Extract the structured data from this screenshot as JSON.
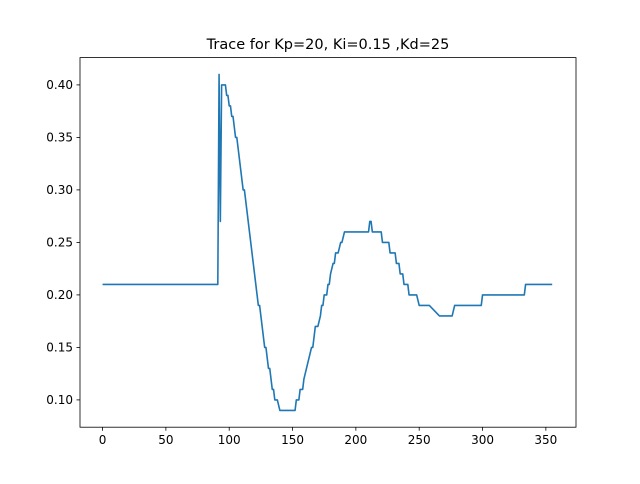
{
  "chart_data": {
    "type": "line",
    "title": "Trace for Kp=20, Ki=0.15 ,Kd=25",
    "xlabel": "",
    "ylabel": "",
    "xlim": [
      -17.8,
      373.8
    ],
    "ylim": [
      0.074,
      0.426
    ],
    "xticks": [
      0,
      50,
      100,
      150,
      200,
      250,
      300,
      350
    ],
    "xtick_labels": [
      "0",
      "50",
      "100",
      "150",
      "200",
      "250",
      "300",
      "350"
    ],
    "yticks": [
      0.1,
      0.15,
      0.2,
      0.25,
      0.3,
      0.35,
      0.4
    ],
    "ytick_labels": [
      "0.10",
      "0.15",
      "0.20",
      "0.25",
      "0.30",
      "0.35",
      "0.40"
    ],
    "grid": false,
    "series": [
      {
        "color": "#1f77b4",
        "x": [
          0,
          91,
          92,
          93,
          94,
          95,
          97,
          98,
          99,
          100,
          101,
          102,
          103,
          104,
          105,
          106,
          107,
          108,
          109,
          110,
          111,
          112,
          113,
          114,
          115,
          116,
          117,
          118,
          119,
          120,
          121,
          122,
          123,
          124,
          125,
          126,
          127,
          128,
          129,
          130,
          131,
          132,
          133,
          134,
          135,
          136,
          138,
          140,
          141,
          143,
          147,
          149,
          152,
          153,
          154,
          155,
          156,
          157,
          158,
          159,
          161,
          163,
          165,
          166,
          167,
          168,
          170,
          172,
          173,
          174,
          175,
          177,
          178,
          179,
          180,
          182,
          183,
          184,
          186,
          188,
          189,
          191,
          192,
          194,
          196,
          200,
          201,
          203,
          205,
          208,
          210,
          211,
          212,
          213,
          220,
          221,
          226,
          227,
          231,
          232,
          234,
          235,
          237,
          238,
          241,
          242,
          243,
          245,
          246,
          248,
          250,
          252,
          254,
          255,
          258,
          266,
          267,
          268,
          276,
          278,
          280,
          286,
          298,
          299,
          300,
          326,
          333,
          334,
          340,
          355
        ],
        "y": [
          0.21,
          0.21,
          0.41,
          0.27,
          0.4,
          0.4,
          0.4,
          0.39,
          0.39,
          0.38,
          0.38,
          0.37,
          0.37,
          0.36,
          0.35,
          0.35,
          0.34,
          0.33,
          0.32,
          0.31,
          0.3,
          0.3,
          0.29,
          0.28,
          0.27,
          0.26,
          0.25,
          0.24,
          0.23,
          0.22,
          0.21,
          0.2,
          0.19,
          0.19,
          0.18,
          0.17,
          0.16,
          0.15,
          0.15,
          0.14,
          0.13,
          0.13,
          0.12,
          0.11,
          0.11,
          0.1,
          0.1,
          0.09,
          0.09,
          0.09,
          0.09,
          0.09,
          0.09,
          0.1,
          0.1,
          0.1,
          0.11,
          0.11,
          0.11,
          0.12,
          0.13,
          0.14,
          0.15,
          0.15,
          0.16,
          0.17,
          0.17,
          0.18,
          0.19,
          0.19,
          0.2,
          0.2,
          0.21,
          0.21,
          0.22,
          0.23,
          0.23,
          0.24,
          0.24,
          0.25,
          0.25,
          0.26,
          0.26,
          0.26,
          0.26,
          0.26,
          0.26,
          0.26,
          0.26,
          0.26,
          0.26,
          0.27,
          0.27,
          0.26,
          0.26,
          0.25,
          0.25,
          0.24,
          0.24,
          0.23,
          0.23,
          0.22,
          0.22,
          0.21,
          0.21,
          0.2,
          0.2,
          0.2,
          0.2,
          0.2,
          0.19,
          0.19,
          0.19,
          0.19,
          0.19,
          0.18,
          0.18,
          0.18,
          0.18,
          0.19,
          0.19,
          0.19,
          0.19,
          0.19,
          0.2,
          0.2,
          0.2,
          0.21,
          0.21,
          0.21
        ]
      }
    ]
  }
}
